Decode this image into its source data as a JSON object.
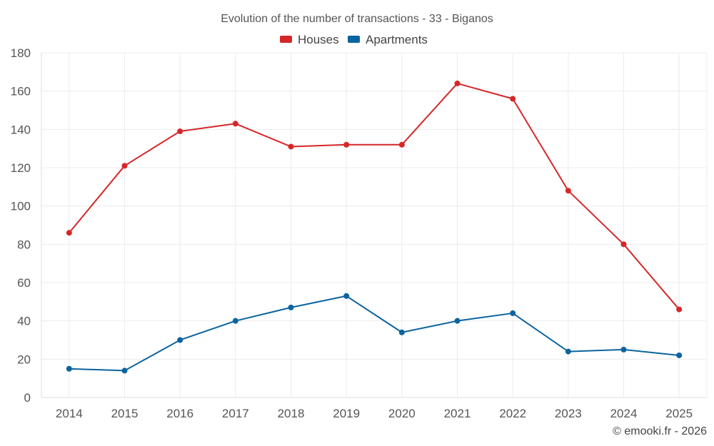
{
  "chart_data": {
    "type": "line",
    "title": "Evolution of the number of transactions - 33 - Biganos",
    "x": [
      "2014",
      "2015",
      "2016",
      "2017",
      "2018",
      "2019",
      "2020",
      "2021",
      "2022",
      "2023",
      "2024",
      "2025"
    ],
    "series": [
      {
        "name": "Houses",
        "color": "#d62728",
        "values": [
          86,
          121,
          139,
          143,
          131,
          132,
          132,
          164,
          156,
          108,
          80,
          46
        ]
      },
      {
        "name": "Apartments",
        "color": "#0b64a0",
        "values": [
          15,
          14,
          30,
          40,
          47,
          53,
          34,
          40,
          44,
          24,
          25,
          22
        ]
      }
    ],
    "ylim": [
      0,
      180
    ],
    "yticks": [
      0,
      20,
      40,
      60,
      80,
      100,
      120,
      140,
      160,
      180
    ],
    "xlabel": "",
    "ylabel": "",
    "grid": true,
    "legend": "top-center"
  },
  "credit": "© emooki.fr - 2026"
}
